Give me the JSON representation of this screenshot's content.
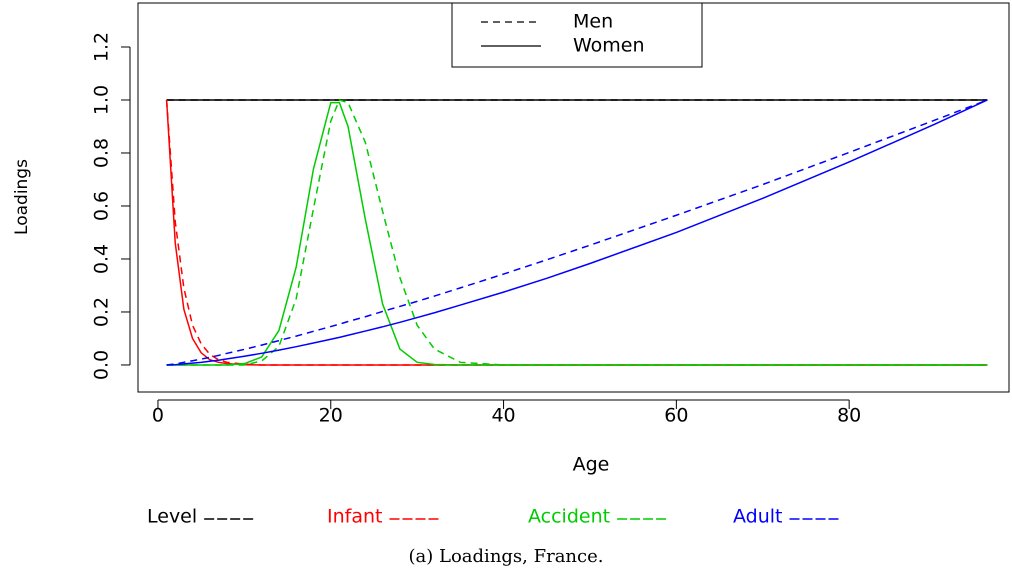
{
  "chart_data": {
    "type": "line",
    "caption": "(a) Loadings, France.",
    "x_label": "Age",
    "y_label": "Loadings",
    "xlim": [
      -2.31,
      98.5
    ],
    "ylim": [
      -0.102,
      1.366
    ],
    "xticks": [
      0,
      20,
      40,
      60,
      80
    ],
    "yticks": [
      {
        "value": 0,
        "label": "0.0"
      },
      0.2,
      0.4,
      0.6,
      0.8,
      {
        "value": 1,
        "label": "1.0"
      },
      1.2
    ],
    "line_styles": [
      {
        "name": "Men",
        "dash": "dashed"
      },
      {
        "name": "Women",
        "dash": "solid"
      }
    ],
    "x": [
      1,
      2,
      3,
      4,
      5,
      6,
      7,
      8,
      10,
      12,
      14,
      16,
      18,
      20,
      21,
      22,
      24,
      26,
      28,
      30,
      32,
      35,
      40,
      45,
      50,
      60,
      70,
      80,
      90,
      96
    ],
    "series": [
      {
        "name": "Level",
        "color": "#000000",
        "values": [
          [
            1,
            1,
            1,
            1,
            1,
            1,
            1,
            1,
            1,
            1,
            1,
            1,
            1,
            1,
            1,
            1,
            1,
            1,
            1,
            1,
            1,
            1,
            1,
            1,
            1,
            1,
            1,
            1,
            1,
            1
          ],
          [
            1,
            1,
            1,
            1,
            1,
            1,
            1,
            1,
            1,
            1,
            1,
            1,
            1,
            1,
            1,
            1,
            1,
            1,
            1,
            1,
            1,
            1,
            1,
            1,
            1,
            1,
            1,
            1,
            1,
            1
          ]
        ]
      },
      {
        "name": "Infant",
        "color": "#ff0000",
        "values": [
          [
            1,
            0.54,
            0.29,
            0.15,
            0.08,
            0.04,
            0.02,
            0.01,
            0.003,
            0,
            0,
            0,
            0,
            0,
            0,
            0,
            0,
            0,
            0,
            0,
            0,
            0,
            0,
            0,
            0,
            0,
            0,
            0,
            0,
            0
          ],
          [
            1,
            0.46,
            0.21,
            0.1,
            0.046,
            0.02,
            0.01,
            0.005,
            0.001,
            0,
            0,
            0,
            0,
            0,
            0,
            0,
            0,
            0,
            0,
            0,
            0,
            0,
            0,
            0,
            0,
            0,
            0,
            0,
            0,
            0
          ]
        ]
      },
      {
        "name": "Accident",
        "color": "#00cc00",
        "values": [
          [
            0,
            0,
            0,
            0,
            0,
            0,
            0,
            0,
            0,
            0.015,
            0.07,
            0.25,
            0.59,
            0.92,
            1,
            0.99,
            0.84,
            0.58,
            0.33,
            0.15,
            0.06,
            0.01,
            0,
            0,
            0,
            0,
            0,
            0,
            0,
            0
          ],
          [
            0,
            0,
            0,
            0,
            0,
            0,
            0,
            0,
            0.005,
            0.03,
            0.13,
            0.37,
            0.74,
            0.99,
            0.99,
            0.9,
            0.55,
            0.23,
            0.06,
            0.01,
            0.002,
            0,
            0,
            0,
            0,
            0,
            0,
            0,
            0,
            0
          ]
        ]
      },
      {
        "name": "Adult",
        "color": "#0000ff",
        "values": [
          [
            0,
            0.004,
            0.01,
            0.016,
            0.022,
            0.029,
            0.036,
            0.044,
            0.059,
            0.075,
            0.092,
            0.109,
            0.127,
            0.145,
            0.154,
            0.164,
            0.182,
            0.202,
            0.221,
            0.24,
            0.26,
            0.291,
            0.343,
            0.397,
            0.452,
            0.565,
            0.681,
            0.802,
            0.925,
            1
          ],
          [
            0,
            0.001,
            0.004,
            0.007,
            0.01,
            0.014,
            0.018,
            0.023,
            0.033,
            0.044,
            0.056,
            0.069,
            0.083,
            0.097,
            0.104,
            0.112,
            0.128,
            0.144,
            0.161,
            0.179,
            0.197,
            0.226,
            0.275,
            0.327,
            0.383,
            0.5,
            0.629,
            0.766,
            0.91,
            1
          ]
        ]
      }
    ]
  }
}
